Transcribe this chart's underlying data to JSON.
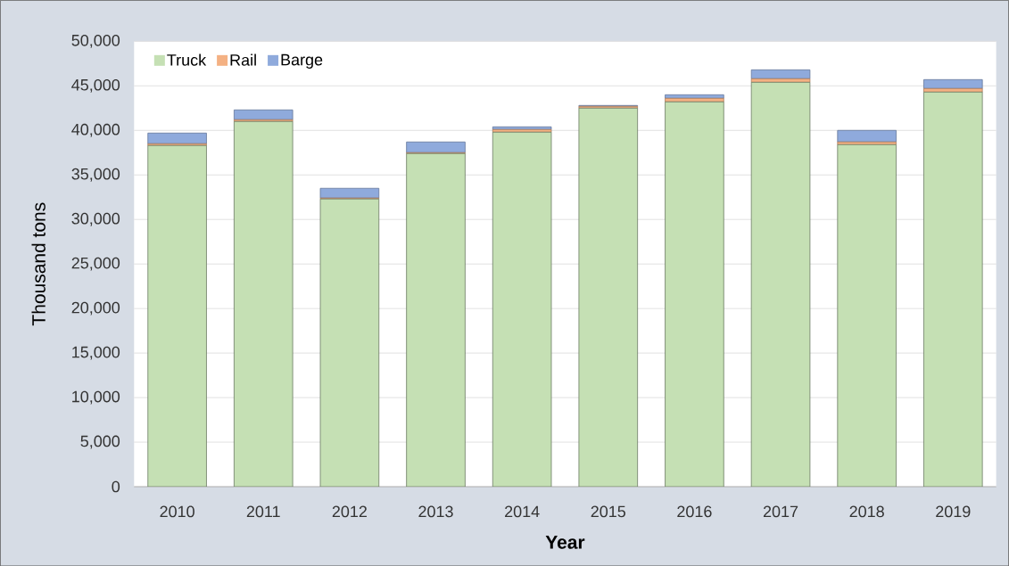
{
  "chart_data": {
    "type": "bar",
    "stacked": true,
    "xlabel": "Year",
    "ylabel": "Thousand tons",
    "categories": [
      "2010",
      "2011",
      "2012",
      "2013",
      "2014",
      "2015",
      "2016",
      "2017",
      "2018",
      "2019"
    ],
    "series": [
      {
        "name": "Truck",
        "color": "#c5e0b4",
        "values": [
          38300,
          41000,
          32300,
          37400,
          39800,
          42500,
          43200,
          45400,
          38400,
          44300
        ]
      },
      {
        "name": "Rail",
        "color": "#f4b183",
        "values": [
          200,
          200,
          100,
          100,
          300,
          200,
          400,
          400,
          300,
          400
        ]
      },
      {
        "name": "Barge",
        "color": "#8faadc",
        "values": [
          1200,
          1100,
          1100,
          1200,
          300,
          100,
          400,
          1000,
          1300,
          1000
        ]
      }
    ],
    "ylim": [
      0,
      50000
    ],
    "yticks": [
      {
        "value": 0,
        "label": "0"
      },
      {
        "value": 5000,
        "label": "5,000"
      },
      {
        "value": 10000,
        "label": "10,000"
      },
      {
        "value": 15000,
        "label": "15,000"
      },
      {
        "value": 20000,
        "label": "20,000"
      },
      {
        "value": 25000,
        "label": "25,000"
      },
      {
        "value": 30000,
        "label": "30,000"
      },
      {
        "value": 35000,
        "label": "35,000"
      },
      {
        "value": 40000,
        "label": "40,000"
      },
      {
        "value": 45000,
        "label": "45,000"
      },
      {
        "value": 50000,
        "label": "50,000"
      }
    ],
    "grid": "y",
    "legend": "top left"
  }
}
